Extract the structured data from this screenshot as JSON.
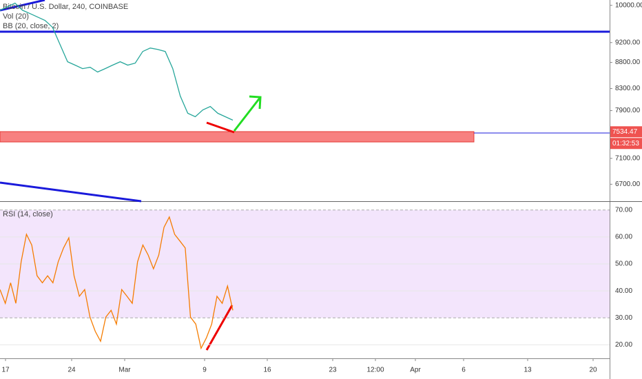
{
  "header": {
    "symbol": "Bitcoin / U.S. Dollar, 240, COINBASE",
    "volume": "Vol (20)",
    "bollinger": "BB (20, close, 2)"
  },
  "price_chart": {
    "type": "line",
    "log_scale": true,
    "color": "#26a69a",
    "ylim": [
      6450,
      10120
    ],
    "yticks": [
      {
        "value": 10000,
        "label": "10000.00"
      },
      {
        "value": 9200,
        "label": "9200.00"
      },
      {
        "value": 8800,
        "label": "8800.00"
      },
      {
        "value": 8300,
        "label": "8300.00"
      },
      {
        "value": 7900,
        "label": "7900.00"
      },
      {
        "value": 7100,
        "label": "7100.00"
      },
      {
        "value": 6700,
        "label": "6700.00"
      }
    ],
    "values": [
      9890,
      9970,
      10050,
      9890,
      9817,
      9741,
      9667,
      9519,
      9159,
      8814,
      8747,
      8679,
      8706,
      8613,
      8679,
      8747,
      8814,
      8747,
      8787,
      9019,
      9089,
      9061,
      9019,
      8679,
      8162,
      7853,
      7793,
      7913,
      7974,
      7853,
      7793,
      7733
    ],
    "last_price": 7534.47,
    "countdown": "01:32:53"
  },
  "rsi": {
    "type": "line",
    "title": "RSI (14, close)",
    "color": "#f57c00",
    "ylim": [
      15,
      73
    ],
    "yticks": [
      {
        "value": 70,
        "label": "70.00"
      },
      {
        "value": 60,
        "label": "60.00"
      },
      {
        "value": 50,
        "label": "50.00"
      },
      {
        "value": 40,
        "label": "40.00"
      },
      {
        "value": 30,
        "label": "30.00"
      },
      {
        "value": 20,
        "label": "20.00"
      }
    ],
    "values": [
      40.5,
      35.4,
      43,
      35.4,
      50.8,
      61,
      57,
      45.6,
      43,
      45.6,
      43,
      50.8,
      55.9,
      59.7,
      45.6,
      38,
      40.5,
      30.3,
      25,
      21.3,
      30.3,
      32.8,
      27.7,
      40.5,
      38,
      35.4,
      50.8,
      57,
      53.3,
      48.2,
      53.3,
      63.6,
      67.4,
      61,
      58.5,
      55.9,
      30.3,
      27.7,
      18.7,
      22.6,
      27.7,
      38,
      35.4,
      41.8,
      32.8
    ]
  },
  "time_axis": [
    "17",
    "24",
    "Mar",
    "9",
    "16",
    "23",
    "12:00",
    "Apr",
    "6",
    "13",
    "20"
  ]
}
